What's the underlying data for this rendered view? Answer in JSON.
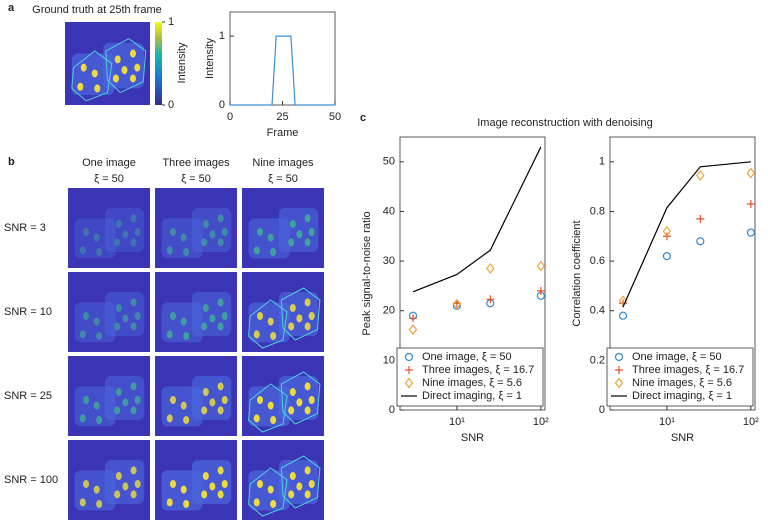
{
  "figure": {
    "panel_labels": [
      "a",
      "b",
      "c"
    ],
    "image_title": "Ground truth at 25th frame",
    "colorbar": {
      "label": "Intensity",
      "lim": [
        0,
        1
      ],
      "ticks": [
        0,
        1
      ]
    },
    "grid_columns": [
      [
        "One image",
        "ξ = 50"
      ],
      [
        "Three images",
        "ξ = 50"
      ],
      [
        "Nine images",
        "ξ = 50"
      ]
    ],
    "grid_rows": [
      "SNR = 3",
      "SNR = 10",
      "SNR = 25",
      "SNR = 100"
    ],
    "panel_c_title": "Image reconstruction with denoising"
  },
  "chart_data": [
    {
      "type": "line",
      "xlabel": "Frame",
      "ylabel": "Intensity",
      "x": [
        0,
        20,
        22,
        29,
        31,
        50
      ],
      "values": [
        0,
        0,
        1,
        1,
        0,
        0
      ],
      "color": "#3d8fd6",
      "xlim": [
        0,
        50
      ],
      "xticks": [
        0,
        25,
        50
      ],
      "ylim": [
        0,
        1.35
      ],
      "yticks": [
        0,
        1
      ]
    },
    {
      "type": "scatter",
      "xlabel": "SNR",
      "ylabel": "Peak signal-to-noise ratio",
      "xscale": "log",
      "x": [
        3,
        10,
        25,
        100
      ],
      "xlim": [
        2.1,
        112
      ],
      "xticks": [
        {
          "value": 10,
          "label": "10¹"
        },
        {
          "value": 100,
          "label": "10²"
        }
      ],
      "ylim": [
        0,
        55
      ],
      "yticks": [
        0,
        10,
        20,
        30,
        40,
        50
      ],
      "legend": "lower right",
      "series": [
        {
          "name": "One image, ξ = 50",
          "color": "#2e8bd6",
          "marker": "circle",
          "values": [
            19,
            21,
            21.5,
            23
          ]
        },
        {
          "name": "Three images, ξ = 16.7",
          "color": "#e8542a",
          "marker": "plus",
          "values": [
            18.5,
            21.5,
            22.3,
            24
          ]
        },
        {
          "name": "Nine images, ξ = 5.6",
          "color": "#eda43a",
          "marker": "diamond",
          "values": [
            16.2,
            21.3,
            28.5,
            29
          ]
        },
        {
          "name": "Direct imaging, ξ = 1",
          "color": "#000000",
          "marker": "line",
          "values": [
            23.8,
            27.3,
            32.2,
            53
          ]
        }
      ]
    },
    {
      "type": "scatter",
      "xlabel": "SNR",
      "ylabel": "Correlation coefficient",
      "xscale": "log",
      "x": [
        3,
        10,
        25,
        100
      ],
      "xlim": [
        2.1,
        112
      ],
      "xticks": [
        {
          "value": 10,
          "label": "10¹"
        },
        {
          "value": 100,
          "label": "10²"
        }
      ],
      "ylim": [
        0,
        1.1
      ],
      "yticks": [
        0,
        0.2,
        0.4,
        0.6,
        0.8,
        1
      ],
      "legend": "lower right",
      "series": [
        {
          "name": "One image, ξ = 50",
          "color": "#2e8bd6",
          "marker": "circle",
          "values": [
            0.38,
            0.62,
            0.68,
            0.715
          ]
        },
        {
          "name": "Three images, ξ = 16.7",
          "color": "#e8542a",
          "marker": "plus",
          "values": [
            0.43,
            0.7,
            0.77,
            0.83
          ]
        },
        {
          "name": "Nine images, ξ = 5.6",
          "color": "#eda43a",
          "marker": "diamond",
          "values": [
            0.44,
            0.72,
            0.945,
            0.955
          ]
        },
        {
          "name": "Direct imaging, ξ = 1",
          "color": "#000000",
          "marker": "line",
          "values": [
            0.415,
            0.815,
            0.98,
            1
          ]
        }
      ]
    }
  ]
}
